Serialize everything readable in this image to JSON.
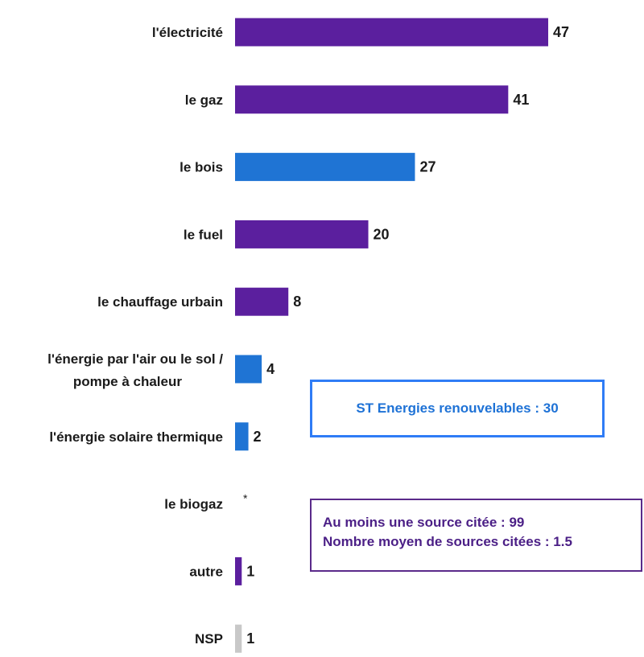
{
  "chart_data": {
    "type": "bar",
    "orientation": "horizontal",
    "categories": [
      "l'électricité",
      "le gaz",
      "le bois",
      "le fuel",
      "le chauffage urbain",
      "l'énergie par l'air ou le sol / pompe à chaleur",
      "l'énergie solaire thermique",
      "le biogaz",
      "autre",
      "NSP"
    ],
    "values": [
      47,
      41,
      27,
      20,
      8,
      4,
      2,
      0,
      1,
      1
    ],
    "value_labels": [
      "47",
      "41",
      "27",
      "20",
      "8",
      "4",
      "2",
      "*",
      "1",
      "1"
    ],
    "bar_colors": [
      "#5b1f9e",
      "#5b1f9e",
      "#1f74d4",
      "#5b1f9e",
      "#5b1f9e",
      "#1f74d4",
      "#1f74d4",
      "#5b1f9e",
      "#5b1f9e",
      "#c8c8c8"
    ],
    "xlim": [
      0,
      47
    ],
    "title": "",
    "xlabel": "",
    "ylabel": ""
  },
  "annotations": {
    "renewables": "ST Energies renouvelables : 30",
    "summary_line1": "Au moins une source citée : 99",
    "summary_line2": "Nombre moyen de sources citées : 1.5"
  }
}
